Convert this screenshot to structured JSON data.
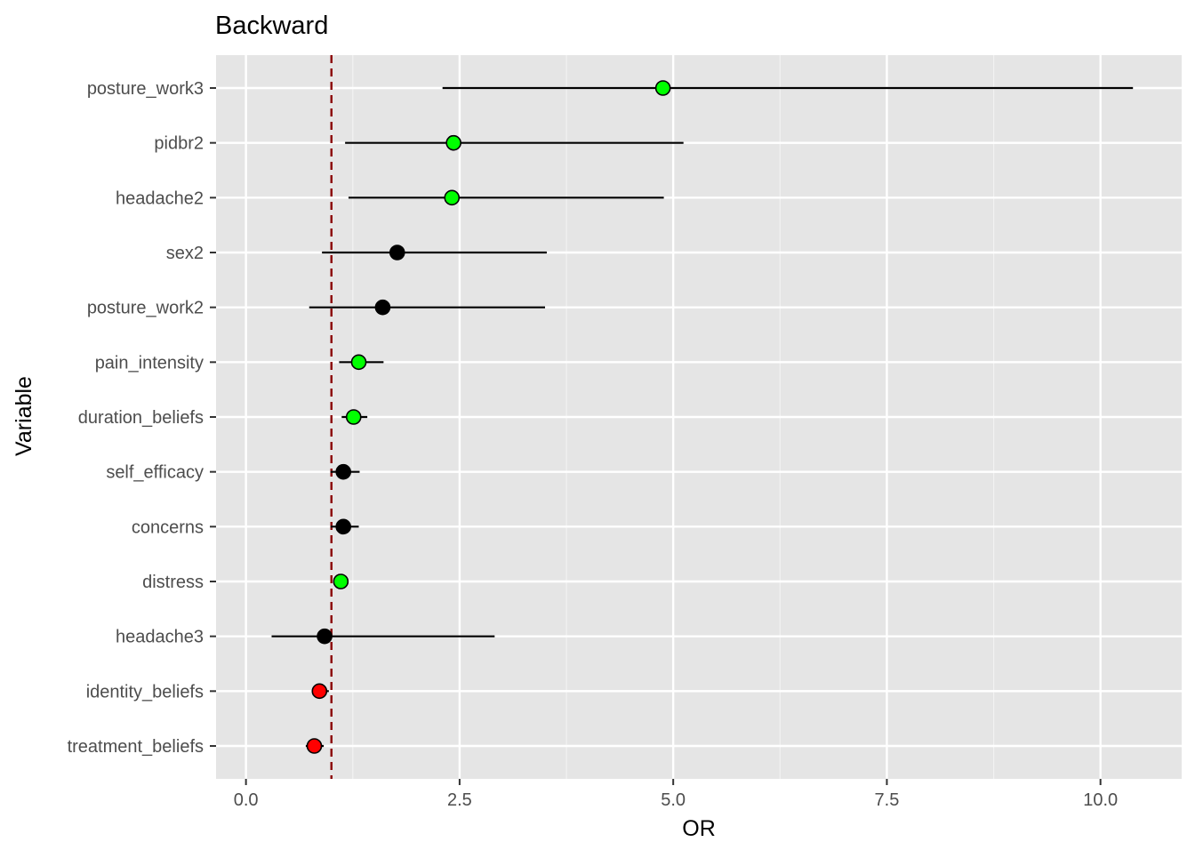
{
  "chart_data": {
    "type": "scatter",
    "subtype": "forest-plot",
    "title": "Backward",
    "xlabel": "OR",
    "ylabel": "Variable",
    "xlim": [
      -0.35,
      10.95
    ],
    "x_ticks": [
      0.0,
      2.5,
      5.0,
      7.5,
      10.0
    ],
    "x_tick_labels": [
      "0.0",
      "2.5",
      "5.0",
      "7.5",
      "10.0"
    ],
    "reference_line": {
      "x": 1.0,
      "style": "dashed",
      "color": "#8b0000"
    },
    "grid": true,
    "panel_background": "#e5e5e5",
    "colors": {
      "significant_positive": "#00ff00",
      "significant_negative": "#ff0000",
      "not_significant": "#000000"
    },
    "rows": [
      {
        "variable": "posture_work3",
        "or": 4.88,
        "lower": 2.3,
        "upper": 10.38,
        "color": "#00ff00"
      },
      {
        "variable": "pidbr2",
        "or": 2.43,
        "lower": 1.16,
        "upper": 5.12,
        "color": "#00ff00"
      },
      {
        "variable": "headache2",
        "or": 2.41,
        "lower": 1.2,
        "upper": 4.89,
        "color": "#00ff00"
      },
      {
        "variable": "sex2",
        "or": 1.77,
        "lower": 0.89,
        "upper": 3.52,
        "color": "#000000"
      },
      {
        "variable": "posture_work2",
        "or": 1.6,
        "lower": 0.74,
        "upper": 3.5,
        "color": "#000000"
      },
      {
        "variable": "pain_intensity",
        "or": 1.32,
        "lower": 1.09,
        "upper": 1.61,
        "color": "#00ff00"
      },
      {
        "variable": "duration_beliefs",
        "or": 1.26,
        "lower": 1.12,
        "upper": 1.42,
        "color": "#00ff00"
      },
      {
        "variable": "self_efficacy",
        "or": 1.14,
        "lower": 0.99,
        "upper": 1.33,
        "color": "#000000"
      },
      {
        "variable": "concerns",
        "or": 1.14,
        "lower": 0.99,
        "upper": 1.32,
        "color": "#000000"
      },
      {
        "variable": "distress",
        "or": 1.11,
        "lower": 1.03,
        "upper": 1.18,
        "color": "#00ff00"
      },
      {
        "variable": "headache3",
        "or": 0.92,
        "lower": 0.3,
        "upper": 2.91,
        "color": "#000000"
      },
      {
        "variable": "identity_beliefs",
        "or": 0.86,
        "lower": 0.77,
        "upper": 0.97,
        "color": "#ff0000"
      },
      {
        "variable": "treatment_beliefs",
        "or": 0.8,
        "lower": 0.7,
        "upper": 0.91,
        "color": "#ff0000"
      }
    ]
  }
}
